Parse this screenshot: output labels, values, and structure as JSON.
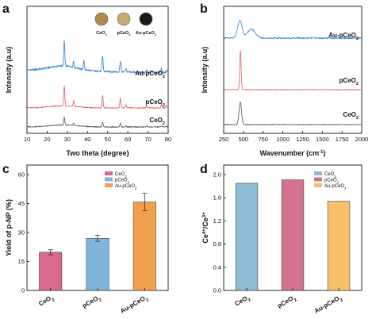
{
  "chart_data": [
    {
      "panel": "a",
      "type": "line",
      "xlabel": "Two theta (degree)",
      "ylabel": "Intensity (a.u)",
      "xlim": [
        10,
        80
      ],
      "xticks": [
        "10",
        "20",
        "30",
        "40",
        "50",
        "60",
        "70",
        "80"
      ],
      "series": [
        {
          "name": "Au-pCeO2",
          "label_main": "Au-pCeO",
          "label_sub": "2",
          "color": "#2f7fd6",
          "peaks": [
            [
              28.5,
              1.0
            ],
            [
              33.1,
              0.25
            ],
            [
              38.2,
              0.35
            ],
            [
              47.5,
              0.6
            ],
            [
              56.3,
              0.45
            ],
            [
              59.1,
              0.15
            ],
            [
              69.4,
              0.12
            ],
            [
              76.7,
              0.18
            ],
            [
              79.1,
              0.12
            ]
          ]
        },
        {
          "name": "pCeO2",
          "label_main": "pCeO",
          "label_sub": "2",
          "color": "#e05f5f",
          "peaks": [
            [
              28.5,
              1.0
            ],
            [
              33.1,
              0.28
            ],
            [
              47.5,
              0.62
            ],
            [
              56.3,
              0.48
            ],
            [
              59.1,
              0.15
            ],
            [
              69.4,
              0.12
            ],
            [
              76.7,
              0.18
            ],
            [
              79.1,
              0.12
            ]
          ]
        },
        {
          "name": "CeO2",
          "label_main": "CeO",
          "label_sub": "2",
          "color": "#555555",
          "peaks": [
            [
              28.5,
              1.0
            ],
            [
              33.1,
              0.25
            ],
            [
              47.5,
              0.6
            ],
            [
              56.3,
              0.45
            ],
            [
              59.1,
              0.12
            ],
            [
              69.4,
              0.1
            ],
            [
              76.7,
              0.15
            ],
            [
              79.1,
              0.1
            ]
          ]
        }
      ],
      "inset_labels": [
        {
          "main": "CeO",
          "sub": "2",
          "color": "#b08a52"
        },
        {
          "main": "pCeO",
          "sub": "2",
          "color": "#c9a878"
        },
        {
          "main": "Au-pCeO",
          "sub": "2",
          "color": "#1a1a1a"
        }
      ]
    },
    {
      "panel": "b",
      "type": "line",
      "xlabel": "Wavenumber (cm",
      "xlabel_sup": "-1",
      "xlabel_end": ")",
      "ylabel": "Intensity (a.u)",
      "xlim": [
        250,
        2000
      ],
      "xticks": [
        "250",
        "500",
        "750",
        "1000",
        "1250",
        "1500",
        "1750",
        "2000"
      ],
      "series": [
        {
          "name": "Au-pCeO2",
          "label_main": "Au-pCeO",
          "label_sub": "2",
          "color": "#2f7fd6",
          "peak": 455,
          "height": 0.55,
          "width": 40,
          "shoulder": 600
        },
        {
          "name": "pCeO2",
          "label_main": "pCeO",
          "label_sub": "2",
          "color": "#e05f5f",
          "peak": 462,
          "height": 1.0,
          "width": 12
        },
        {
          "name": "CeO2",
          "label_main": "CeO",
          "label_sub": "2",
          "color": "#555555",
          "peak": 460,
          "height": 0.75,
          "width": 22
        }
      ]
    },
    {
      "panel": "c",
      "type": "bar",
      "ylabel": "Yield of p-NP (%)",
      "ylim": [
        0,
        60
      ],
      "yticks": [
        "0",
        "15",
        "30",
        "45",
        "60"
      ],
      "categories": [
        {
          "main": "CeO",
          "sub": "2"
        },
        {
          "main": "pCeO",
          "sub": "2"
        },
        {
          "main": "Au-pCeO",
          "sub": "2"
        }
      ],
      "values": [
        19.8,
        27.0,
        45.8
      ],
      "errors": [
        1.3,
        1.6,
        4.5
      ],
      "colors": [
        "#d76a8a",
        "#7fb5dc",
        "#f0a04b"
      ],
      "legend": [
        {
          "main": "CeO",
          "sub": "2"
        },
        {
          "main": "pCeO",
          "sub": "2"
        },
        {
          "main": "Au-pCeO",
          "sub": "2"
        }
      ]
    },
    {
      "panel": "d",
      "type": "bar",
      "ylabel_main": "Ce",
      "ylabel_sup1": "4+",
      "ylabel_mid": "/Ce",
      "ylabel_sup2": "3+",
      "ylim": [
        0,
        2.0
      ],
      "yticks": [
        "0.0",
        "0.4",
        "0.8",
        "1.2",
        "1.6",
        "2.0"
      ],
      "categories": [
        {
          "main": "CeO",
          "sub": "2"
        },
        {
          "main": "pCeO",
          "sub": "2"
        },
        {
          "main": "Au-pCeO",
          "sub": "2"
        }
      ],
      "values": [
        1.85,
        1.91,
        1.54
      ],
      "colors": [
        "#8dbbd6",
        "#d2748e",
        "#f6bf6a"
      ],
      "legend": [
        {
          "main": "CeO",
          "sub": "2"
        },
        {
          "main": "pCeO",
          "sub": "2"
        },
        {
          "main": "Au-pCeO",
          "sub": "2"
        }
      ]
    }
  ]
}
